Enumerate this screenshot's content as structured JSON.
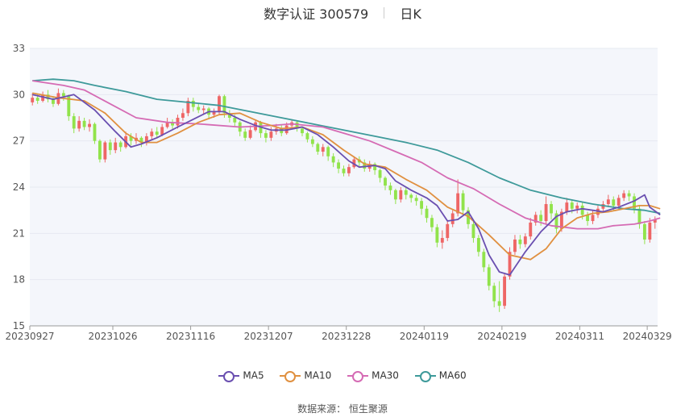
{
  "header": {
    "stock": "数字认证 300579",
    "period": "日K"
  },
  "source": "数据来源： 恒生聚源",
  "colors": {
    "up": "#ee6666",
    "down": "#91e34b",
    "ma5": "#6a4fb0",
    "ma10": "#e09040",
    "ma30": "#d56bb4",
    "ma60": "#3e9a9a",
    "grid": "#e6e9f2",
    "plot_bg": "#f4f6fb"
  },
  "chart_data": {
    "type": "candlestick",
    "ylim": [
      15,
      33
    ],
    "yticks": [
      "15",
      "18",
      "21",
      "24",
      "27",
      "30",
      "33"
    ],
    "x_tick_labels": [
      "20230927",
      "20231026",
      "20231116",
      "20231207",
      "20231228",
      "20240119",
      "20240219",
      "20240311",
      "20240329"
    ],
    "x_tick_indices": [
      0,
      16,
      31,
      46,
      61,
      76,
      91,
      106,
      119
    ],
    "legend": [
      "MA5",
      "MA10",
      "MA30",
      "MA60"
    ],
    "candles": [
      [
        29.5,
        29.8,
        29.3,
        30.1
      ],
      [
        29.8,
        29.6,
        29.4,
        30.0
      ],
      [
        29.6,
        30.0,
        29.5,
        30.2
      ],
      [
        30.0,
        29.7,
        29.5,
        30.3
      ],
      [
        29.7,
        29.4,
        29.2,
        29.9
      ],
      [
        29.4,
        30.1,
        29.3,
        30.4
      ],
      [
        30.1,
        29.9,
        29.6,
        30.3
      ],
      [
        29.9,
        28.6,
        28.3,
        30.0
      ],
      [
        28.6,
        27.8,
        27.5,
        28.8
      ],
      [
        27.8,
        28.3,
        27.6,
        28.6
      ],
      [
        28.3,
        27.9,
        27.7,
        28.5
      ],
      [
        27.9,
        28.1,
        27.6,
        28.4
      ],
      [
        28.1,
        27.0,
        26.8,
        28.2
      ],
      [
        27.0,
        25.8,
        25.6,
        27.1
      ],
      [
        25.8,
        26.9,
        25.6,
        27.0
      ],
      [
        26.9,
        26.4,
        26.1,
        27.1
      ],
      [
        26.4,
        26.9,
        26.2,
        27.2
      ],
      [
        26.9,
        26.6,
        26.3,
        27.0
      ],
      [
        26.6,
        27.3,
        26.5,
        27.6
      ],
      [
        27.3,
        27.0,
        26.7,
        27.5
      ],
      [
        27.0,
        27.2,
        26.8,
        27.5
      ],
      [
        27.2,
        26.9,
        26.6,
        27.3
      ],
      [
        26.9,
        27.3,
        26.7,
        27.5
      ],
      [
        27.3,
        27.6,
        27.1,
        27.8
      ],
      [
        27.6,
        27.4,
        27.2,
        27.9
      ],
      [
        27.4,
        27.9,
        27.3,
        28.1
      ],
      [
        27.9,
        28.2,
        27.8,
        28.5
      ],
      [
        28.2,
        28.0,
        27.7,
        28.4
      ],
      [
        28.0,
        28.5,
        27.8,
        28.7
      ],
      [
        28.5,
        28.8,
        28.3,
        29.1
      ],
      [
        28.8,
        29.6,
        28.6,
        29.8
      ],
      [
        29.6,
        29.2,
        28.9,
        29.8
      ],
      [
        29.2,
        29.0,
        28.8,
        29.4
      ],
      [
        29.0,
        29.1,
        28.7,
        29.3
      ],
      [
        29.1,
        28.7,
        28.4,
        29.2
      ],
      [
        28.7,
        28.9,
        28.5,
        29.1
      ],
      [
        28.9,
        29.9,
        28.7,
        30.0
      ],
      [
        29.9,
        28.8,
        28.5,
        30.0
      ],
      [
        28.8,
        28.5,
        28.2,
        29.0
      ],
      [
        28.5,
        28.2,
        27.9,
        28.7
      ],
      [
        28.2,
        27.6,
        27.3,
        28.3
      ],
      [
        27.6,
        27.2,
        27.0,
        27.8
      ],
      [
        27.2,
        27.7,
        27.1,
        28.0
      ],
      [
        27.7,
        28.2,
        27.6,
        28.4
      ],
      [
        28.2,
        27.5,
        27.2,
        28.3
      ],
      [
        27.5,
        27.2,
        26.9,
        27.7
      ],
      [
        27.2,
        27.6,
        27.0,
        27.9
      ],
      [
        27.6,
        27.8,
        27.4,
        28.1
      ],
      [
        27.8,
        27.5,
        27.3,
        28.0
      ],
      [
        27.5,
        28.0,
        27.4,
        28.2
      ],
      [
        28.0,
        28.2,
        27.8,
        28.4
      ],
      [
        28.2,
        27.8,
        27.6,
        28.3
      ],
      [
        27.8,
        27.5,
        27.3,
        27.9
      ],
      [
        27.5,
        27.1,
        26.9,
        27.6
      ],
      [
        27.1,
        26.8,
        26.6,
        27.3
      ],
      [
        26.8,
        26.3,
        26.1,
        26.9
      ],
      [
        26.3,
        26.6,
        26.0,
        26.8
      ],
      [
        26.6,
        26.0,
        25.7,
        26.7
      ],
      [
        26.0,
        25.6,
        25.3,
        26.2
      ],
      [
        25.6,
        25.2,
        24.9,
        25.8
      ],
      [
        25.2,
        24.9,
        24.7,
        25.4
      ],
      [
        24.9,
        25.3,
        24.7,
        25.5
      ],
      [
        25.3,
        25.8,
        25.2,
        26.0
      ],
      [
        25.8,
        25.6,
        25.3,
        26.0
      ],
      [
        25.6,
        25.2,
        25.0,
        25.8
      ],
      [
        25.2,
        25.5,
        25.0,
        25.7
      ],
      [
        25.5,
        25.1,
        24.8,
        25.6
      ],
      [
        25.1,
        24.6,
        24.3,
        25.2
      ],
      [
        24.6,
        24.1,
        23.8,
        24.7
      ],
      [
        24.1,
        23.8,
        23.5,
        24.3
      ],
      [
        23.8,
        23.2,
        22.9,
        23.9
      ],
      [
        23.2,
        23.8,
        23.0,
        24.0
      ],
      [
        23.8,
        23.5,
        23.2,
        24.0
      ],
      [
        23.5,
        23.3,
        23.0,
        23.6
      ],
      [
        23.3,
        23.1,
        22.8,
        23.5
      ],
      [
        23.1,
        22.6,
        22.2,
        23.3
      ],
      [
        22.6,
        22.0,
        21.7,
        22.8
      ],
      [
        22.0,
        21.4,
        21.1,
        22.2
      ],
      [
        21.4,
        20.4,
        20.1,
        21.6
      ],
      [
        20.4,
        20.7,
        20.0,
        21.2
      ],
      [
        20.7,
        21.6,
        20.5,
        21.8
      ],
      [
        21.6,
        22.3,
        21.4,
        22.5
      ],
      [
        22.3,
        23.6,
        22.1,
        24.5
      ],
      [
        23.6,
        22.5,
        22.2,
        23.8
      ],
      [
        22.5,
        21.6,
        21.3,
        22.7
      ],
      [
        21.6,
        20.7,
        20.4,
        21.8
      ],
      [
        20.7,
        19.8,
        19.5,
        20.9
      ],
      [
        19.8,
        18.8,
        18.5,
        20.0
      ],
      [
        18.8,
        17.6,
        17.3,
        19.0
      ],
      [
        17.6,
        16.6,
        16.2,
        17.8
      ],
      [
        16.6,
        16.3,
        15.9,
        17.9
      ],
      [
        16.3,
        18.2,
        16.1,
        18.4
      ],
      [
        18.2,
        19.8,
        18.0,
        20.1
      ],
      [
        19.8,
        20.6,
        19.6,
        20.9
      ],
      [
        20.6,
        20.3,
        20.0,
        20.9
      ],
      [
        20.3,
        20.8,
        20.1,
        21.0
      ],
      [
        20.8,
        21.7,
        20.6,
        22.0
      ],
      [
        21.7,
        22.2,
        21.5,
        22.4
      ],
      [
        22.2,
        21.8,
        21.5,
        22.5
      ],
      [
        21.8,
        22.9,
        21.6,
        23.4
      ],
      [
        22.9,
        22.3,
        21.9,
        23.1
      ],
      [
        22.3,
        21.3,
        21.0,
        22.5
      ],
      [
        21.3,
        22.4,
        21.1,
        22.6
      ],
      [
        22.4,
        23.0,
        22.2,
        23.3
      ],
      [
        23.0,
        22.6,
        22.3,
        23.2
      ],
      [
        22.6,
        22.8,
        22.3,
        23.0
      ],
      [
        22.8,
        22.2,
        21.9,
        23.0
      ],
      [
        22.2,
        21.8,
        21.5,
        22.4
      ],
      [
        21.8,
        22.2,
        21.6,
        22.5
      ],
      [
        22.2,
        22.6,
        22.0,
        22.8
      ],
      [
        22.6,
        22.9,
        22.4,
        23.1
      ],
      [
        22.9,
        23.2,
        22.7,
        23.5
      ],
      [
        23.2,
        22.8,
        22.5,
        23.4
      ],
      [
        22.8,
        23.3,
        22.6,
        23.5
      ],
      [
        23.3,
        23.6,
        23.1,
        23.8
      ],
      [
        23.6,
        23.4,
        23.1,
        23.8
      ],
      [
        23.4,
        22.6,
        22.3,
        23.6
      ],
      [
        22.6,
        21.6,
        21.3,
        22.8
      ],
      [
        21.6,
        20.6,
        20.3,
        21.8
      ],
      [
        20.6,
        21.7,
        20.4,
        22.0
      ],
      [
        21.7,
        21.9,
        21.3,
        22.1
      ]
    ],
    "ma5": [
      [
        0,
        30.0
      ],
      [
        4,
        29.7
      ],
      [
        8,
        30.0
      ],
      [
        12,
        29.0
      ],
      [
        16,
        27.6
      ],
      [
        19,
        26.6
      ],
      [
        21,
        26.8
      ],
      [
        24,
        27.2
      ],
      [
        28,
        27.9
      ],
      [
        31,
        28.4
      ],
      [
        34,
        28.9
      ],
      [
        37,
        28.9
      ],
      [
        40,
        28.4
      ],
      [
        43,
        28.0
      ],
      [
        46,
        27.7
      ],
      [
        49,
        27.7
      ],
      [
        52,
        27.9
      ],
      [
        55,
        27.4
      ],
      [
        58,
        26.6
      ],
      [
        61,
        25.7
      ],
      [
        63,
        25.3
      ],
      [
        66,
        25.4
      ],
      [
        68,
        25.2
      ],
      [
        70,
        24.4
      ],
      [
        73,
        23.8
      ],
      [
        76,
        23.3
      ],
      [
        78,
        22.8
      ],
      [
        80,
        21.8
      ],
      [
        82,
        21.9
      ],
      [
        84,
        22.4
      ],
      [
        86,
        21.3
      ],
      [
        88,
        19.6
      ],
      [
        90,
        18.5
      ],
      [
        92,
        18.3
      ],
      [
        95,
        19.8
      ],
      [
        98,
        21.1
      ],
      [
        101,
        22.1
      ],
      [
        103,
        22.4
      ],
      [
        106,
        22.6
      ],
      [
        108,
        22.5
      ],
      [
        110,
        22.4
      ],
      [
        113,
        22.7
      ],
      [
        116,
        23.1
      ],
      [
        118,
        23.5
      ],
      [
        119,
        22.7
      ],
      [
        121,
        22.2
      ]
    ],
    "ma10": [
      [
        0,
        30.1
      ],
      [
        5,
        29.8
      ],
      [
        10,
        29.6
      ],
      [
        14,
        28.8
      ],
      [
        18,
        27.5
      ],
      [
        21,
        26.9
      ],
      [
        24,
        26.9
      ],
      [
        28,
        27.5
      ],
      [
        32,
        28.2
      ],
      [
        36,
        28.7
      ],
      [
        40,
        28.8
      ],
      [
        44,
        28.2
      ],
      [
        48,
        27.8
      ],
      [
        52,
        27.9
      ],
      [
        56,
        27.4
      ],
      [
        60,
        26.4
      ],
      [
        64,
        25.5
      ],
      [
        68,
        25.3
      ],
      [
        72,
        24.5
      ],
      [
        76,
        23.8
      ],
      [
        80,
        22.7
      ],
      [
        84,
        22.1
      ],
      [
        88,
        20.9
      ],
      [
        92,
        19.6
      ],
      [
        96,
        19.3
      ],
      [
        99,
        20.0
      ],
      [
        102,
        21.3
      ],
      [
        105,
        22.0
      ],
      [
        108,
        22.3
      ],
      [
        111,
        22.4
      ],
      [
        114,
        22.6
      ],
      [
        117,
        22.8
      ],
      [
        119,
        22.8
      ],
      [
        121,
        22.6
      ]
    ],
    "ma30": [
      [
        0,
        30.9
      ],
      [
        6,
        30.6
      ],
      [
        10,
        30.3
      ],
      [
        15,
        29.4
      ],
      [
        20,
        28.5
      ],
      [
        26,
        28.2
      ],
      [
        32,
        28.1
      ],
      [
        40,
        27.9
      ],
      [
        46,
        28.0
      ],
      [
        50,
        28.1
      ],
      [
        56,
        27.9
      ],
      [
        60,
        27.5
      ],
      [
        65,
        27.0
      ],
      [
        70,
        26.3
      ],
      [
        75,
        25.6
      ],
      [
        80,
        24.6
      ],
      [
        85,
        23.9
      ],
      [
        90,
        22.9
      ],
      [
        95,
        22.0
      ],
      [
        100,
        21.5
      ],
      [
        105,
        21.3
      ],
      [
        109,
        21.3
      ],
      [
        112,
        21.5
      ],
      [
        116,
        21.6
      ],
      [
        119,
        21.8
      ],
      [
        121,
        22.0
      ]
    ],
    "ma60": [
      [
        0,
        30.9
      ],
      [
        4,
        31.0
      ],
      [
        8,
        30.9
      ],
      [
        12,
        30.6
      ],
      [
        18,
        30.2
      ],
      [
        24,
        29.7
      ],
      [
        30,
        29.5
      ],
      [
        36,
        29.3
      ],
      [
        42,
        28.9
      ],
      [
        48,
        28.5
      ],
      [
        54,
        28.1
      ],
      [
        60,
        27.7
      ],
      [
        66,
        27.3
      ],
      [
        72,
        26.9
      ],
      [
        78,
        26.4
      ],
      [
        84,
        25.6
      ],
      [
        90,
        24.6
      ],
      [
        96,
        23.8
      ],
      [
        102,
        23.3
      ],
      [
        108,
        22.9
      ],
      [
        114,
        22.6
      ],
      [
        118,
        22.5
      ],
      [
        121,
        22.3
      ]
    ]
  }
}
